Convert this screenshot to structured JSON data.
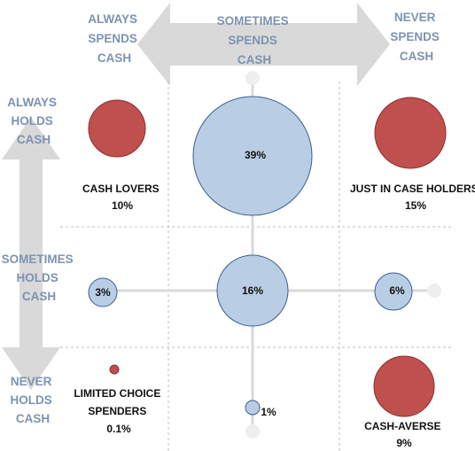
{
  "colors": {
    "arrow": "#d9d9d9",
    "grid": "#bfbfbf",
    "connector": "#d9d9d9",
    "header_text": "#7b93b2",
    "red_fill": "#c0504d",
    "red_stroke": "#8b2e2c",
    "blue_fill": "#b9cde5",
    "blue_stroke": "#3a5f8f"
  },
  "columns": {
    "always_spends": [
      "ALWAYS",
      "SPENDS",
      "CASH"
    ],
    "sometimes_spends": [
      "SOMETIMES",
      "SPENDS",
      "CASH"
    ],
    "never_spends": [
      "NEVER",
      "SPENDS",
      "CASH"
    ]
  },
  "rows": {
    "always_holds": [
      "ALWAYS",
      "HOLDS",
      "CASH"
    ],
    "sometimes_holds": [
      "SOMETIMES",
      "HOLDS",
      "CASH"
    ],
    "never_holds": [
      "NEVER",
      "HOLDS",
      "CASH"
    ]
  },
  "segments": {
    "cash_lovers": {
      "name": "CASH LOVERS",
      "pct": "10%"
    },
    "just_in_case": {
      "name": "JUST IN CASE HOLDERS",
      "pct": "15%"
    },
    "limited_choice": {
      "name": [
        "LIMITED CHOICE",
        "SPENDERS"
      ],
      "pct": "0.1%"
    },
    "cash_averse": {
      "name": "CASH-AVERSE",
      "pct": "9%"
    }
  },
  "bubbles": {
    "top_middle": "39%",
    "center": "16%",
    "middle_left": "3%",
    "middle_right": "6%",
    "bottom_middle": "1%"
  }
}
